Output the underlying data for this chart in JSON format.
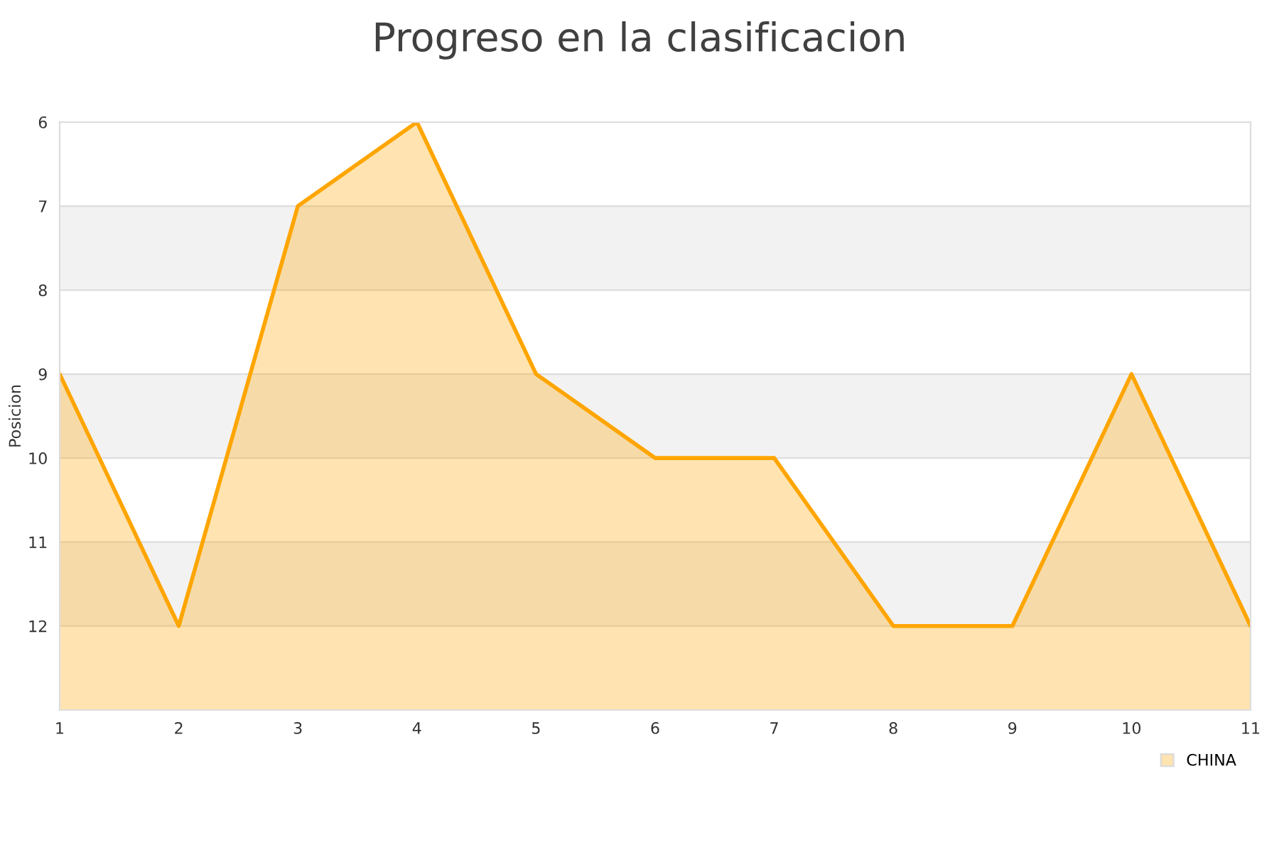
{
  "chart_data": {
    "type": "area",
    "title": "Progreso en la clasificacion",
    "ylabel": "Posicion",
    "x": [
      1,
      2,
      3,
      4,
      5,
      6,
      7,
      8,
      9,
      10,
      11
    ],
    "series": [
      {
        "name": "CHINA",
        "color": "#ffa500",
        "values": [
          9,
          12,
          7,
          6,
          9,
          10,
          10,
          12,
          12,
          9,
          12
        ]
      }
    ],
    "xlim": [
      1,
      11
    ],
    "xticks": [
      1,
      2,
      3,
      4,
      5,
      6,
      7,
      8,
      9,
      10,
      11
    ],
    "ylim": [
      13,
      6
    ],
    "yticks": [
      6,
      7,
      8,
      9,
      10,
      11,
      12
    ],
    "bands": [
      {
        "axis": "y",
        "from": 7,
        "to": 8,
        "color": "#f2f2f2"
      },
      {
        "axis": "y",
        "from": 9,
        "to": 10,
        "color": "#f2f2f2"
      },
      {
        "axis": "y",
        "from": 11,
        "to": 12,
        "color": "#f2f2f2"
      }
    ],
    "grid": "y",
    "legend": "bottom right"
  }
}
